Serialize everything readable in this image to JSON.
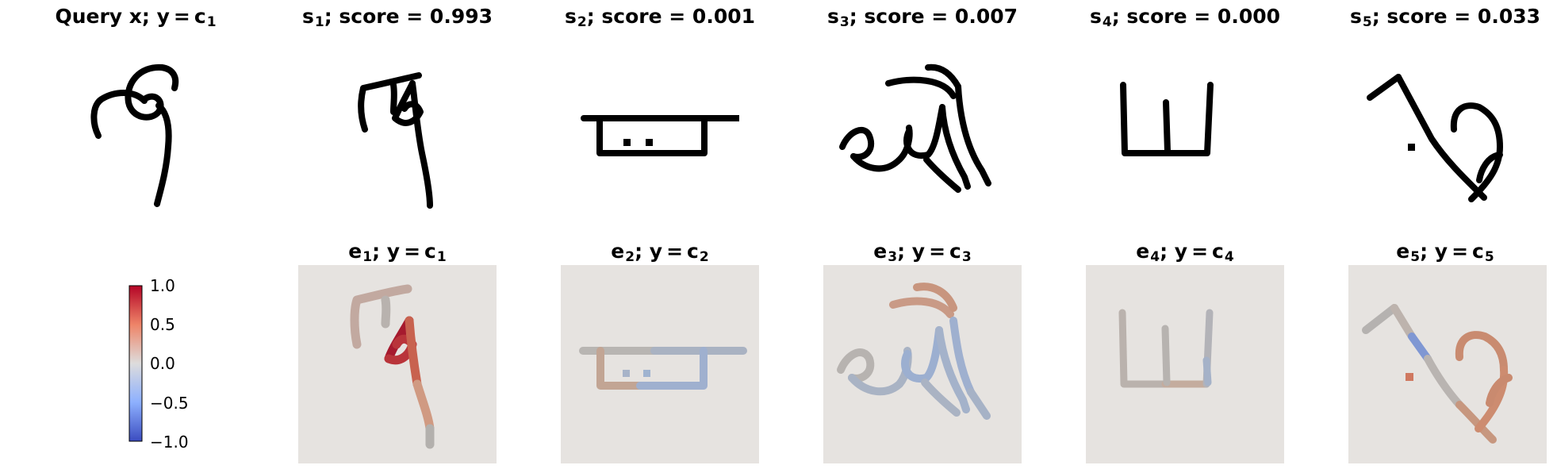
{
  "top_row": [
    {
      "prefix": "Query x; y = c",
      "sub": "1",
      "suffix": ""
    },
    {
      "prefix": "s",
      "sub": "1",
      "suffix": "; score = 0.993"
    },
    {
      "prefix": "s",
      "sub": "2",
      "suffix": "; score = 0.001"
    },
    {
      "prefix": "s",
      "sub": "3",
      "suffix": "; score = 0.007"
    },
    {
      "prefix": "s",
      "sub": "4",
      "suffix": "; score = 0.000"
    },
    {
      "prefix": "s",
      "sub": "5",
      "suffix": "; score = 0.033"
    }
  ],
  "bottom_row": [
    {
      "a": "e",
      "a_sub": "1",
      "mid": "; y = c",
      "b_sub": "1"
    },
    {
      "a": "e",
      "a_sub": "2",
      "mid": "; y = c",
      "b_sub": "2"
    },
    {
      "a": "e",
      "a_sub": "3",
      "mid": "; y = c",
      "b_sub": "3"
    },
    {
      "a": "e",
      "a_sub": "4",
      "mid": "; y = c",
      "b_sub": "4"
    },
    {
      "a": "e",
      "a_sub": "5",
      "mid": "; y = c",
      "b_sub": "5"
    }
  ],
  "colorbar": {
    "ticks": [
      "1.0",
      "0.5",
      "0.0",
      "−0.5",
      "−1.0"
    ],
    "colormap": "coolwarm",
    "min": -1.0,
    "max": 1.0
  },
  "colors": {
    "stroke": "#000000",
    "heat_background": "#e6e3e0",
    "positive": "#b40426",
    "negative": "#3b4cc0",
    "neutral": "#b4aeaa"
  }
}
